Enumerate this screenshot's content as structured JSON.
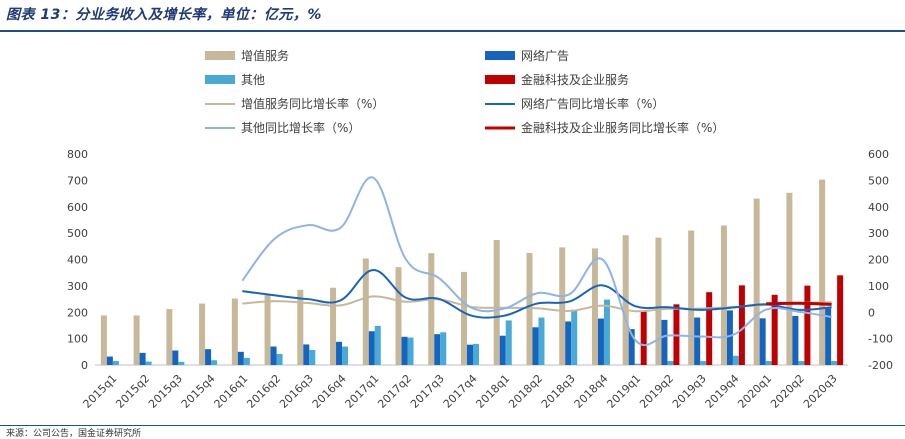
{
  "title": "图表 13：分业务收入及增长率，单位：亿元，%",
  "source": "来源：公司公告，国金证券研究所",
  "chart_data": {
    "type": "bar+line",
    "categories": [
      "2015q1",
      "2015q2",
      "2015q3",
      "2015q4",
      "2016q1",
      "2016q2",
      "2016q3",
      "2016q4",
      "2017q1",
      "2017q2",
      "2017q3",
      "2017q4",
      "2018q1",
      "2018q2",
      "2018q3",
      "2018q4",
      "2019q1",
      "2019q2",
      "2019q3",
      "2019q4",
      "2020q1",
      "2020q2",
      "2020q3"
    ],
    "left_axis": {
      "min": 0,
      "max": 800,
      "ticks": [
        0,
        100,
        200,
        300,
        400,
        500,
        600,
        700,
        800
      ]
    },
    "right_axis": {
      "min": -200,
      "max": 600,
      "ticks": [
        -200,
        -100,
        0,
        100,
        200,
        300,
        400,
        500,
        600
      ]
    },
    "bar_series": [
      {
        "name": "增值服务",
        "color": "#c8b89a",
        "values": [
          188,
          188,
          212,
          233,
          252,
          265,
          285,
          293,
          404,
          371,
          424,
          353,
          474,
          425,
          446,
          442,
          492,
          483,
          510,
          529,
          631,
          653,
          703
        ]
      },
      {
        "name": "网络广告",
        "color": "#1565c0",
        "values": [
          32,
          46,
          55,
          60,
          50,
          70,
          78,
          88,
          128,
          107,
          117,
          77,
          111,
          143,
          165,
          176,
          136,
          171,
          180,
          207,
          177,
          186,
          214
        ]
      },
      {
        "name": "其他",
        "color": "#4aaad6",
        "values": [
          15,
          13,
          12,
          18,
          27,
          42,
          57,
          70,
          148,
          104,
          124,
          80,
          169,
          180,
          210,
          248,
          5,
          15,
          15,
          35,
          15,
          15,
          15
        ]
      },
      {
        "name": "金融科技及企业服务",
        "color": "#c00000",
        "values": [
          null,
          null,
          null,
          null,
          null,
          null,
          null,
          null,
          null,
          null,
          null,
          null,
          null,
          null,
          null,
          null,
          203,
          230,
          276,
          302,
          266,
          301,
          340
        ]
      }
    ],
    "line_series": [
      {
        "name": "增值服务同比增长率（%）",
        "color": "#c8b89a",
        "values": [
          null,
          null,
          null,
          null,
          33,
          42,
          35,
          26,
          60,
          40,
          49,
          20,
          17,
          15,
          5,
          25,
          4,
          13,
          14,
          20,
          28,
          35,
          38
        ]
      },
      {
        "name": "网络广告同比增长率（%）",
        "color": "#1565c0",
        "values": [
          null,
          null,
          null,
          null,
          80,
          64,
          50,
          45,
          160,
          55,
          51,
          -13,
          -13,
          33,
          41,
          102,
          23,
          19,
          9,
          18,
          30,
          9,
          19
        ]
      },
      {
        "name": "其他同比增长率（%）",
        "color": "#8fb4e3",
        "values": [
          null,
          null,
          null,
          null,
          120,
          280,
          330,
          320,
          510,
          200,
          130,
          17,
          14,
          72,
          69,
          200,
          -105,
          -88,
          -92,
          -85,
          10,
          2,
          -18
        ]
      },
      {
        "name": "金融科技及企业服务同比增长率（%）",
        "color": "#c00000",
        "values": [
          null,
          null,
          null,
          null,
          null,
          null,
          null,
          null,
          null,
          null,
          null,
          null,
          null,
          null,
          null,
          null,
          null,
          null,
          null,
          null,
          32,
          34,
          30
        ]
      }
    ],
    "legend": [
      {
        "label": "增值服务",
        "kind": "bar",
        "color": "#c8b89a"
      },
      {
        "label": "网络广告",
        "kind": "bar",
        "color": "#1565c0"
      },
      {
        "label": "其他",
        "kind": "bar",
        "color": "#4aaad6"
      },
      {
        "label": "金融科技及企业服务",
        "kind": "bar",
        "color": "#c00000"
      },
      {
        "label": "增值服务同比增长率（%）",
        "kind": "line",
        "color": "#c8b89a"
      },
      {
        "label": "网络广告同比增长率（%）",
        "kind": "line",
        "color": "#1565c0"
      },
      {
        "label": "其他同比增长率（%）",
        "kind": "line",
        "color": "#8fb4e3"
      },
      {
        "label": "金融科技及企业服务同比增长率（%）",
        "kind": "line",
        "color": "#c00000"
      }
    ]
  }
}
